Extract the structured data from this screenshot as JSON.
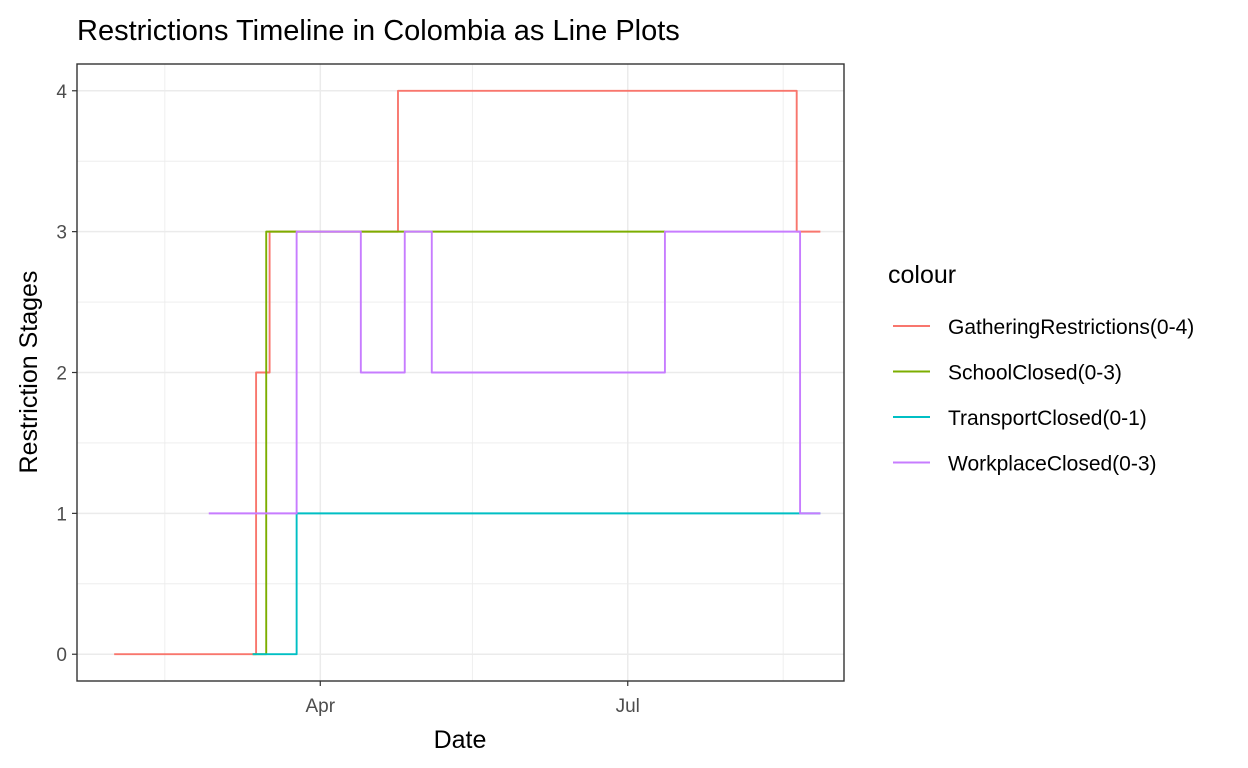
{
  "chart_data": {
    "type": "line",
    "title": "Restrictions Timeline in Colombia as Line Plots",
    "xlabel": "Date",
    "ylabel": "Restriction Stages",
    "xlim": [
      "2020-01-20",
      "2020-09-03"
    ],
    "ylim": [
      -0.19,
      4.19
    ],
    "x_ticks": [
      {
        "date": "2020-04-01",
        "label": "Apr"
      },
      {
        "date": "2020-07-01",
        "label": "Jul"
      }
    ],
    "x_minor_ticks": [
      "2020-02-15",
      "2020-05-16",
      "2020-08-16"
    ],
    "y_ticks": [
      0,
      1,
      2,
      3,
      4
    ],
    "y_minor_ticks": [
      0.5,
      1.5,
      2.5,
      3.5
    ],
    "grid": true,
    "step_style": "step-after",
    "legend": {
      "title": "colour",
      "placement": "right"
    },
    "series": [
      {
        "name": "GatheringRestrictions(0-4)",
        "color": "#F8766D",
        "points": [
          [
            "2020-01-31",
            0
          ],
          [
            "2020-03-13",
            2
          ],
          [
            "2020-03-17",
            3
          ],
          [
            "2020-04-24",
            4
          ],
          [
            "2020-08-20",
            3
          ],
          [
            "2020-08-27",
            3
          ]
        ]
      },
      {
        "name": "SchoolClosed(0-3)",
        "color": "#7CAE00",
        "points": [
          [
            "2020-03-12",
            0
          ],
          [
            "2020-03-16",
            3
          ],
          [
            "2020-07-12",
            3
          ]
        ]
      },
      {
        "name": "TransportClosed(0-1)",
        "color": "#00BFC4",
        "points": [
          [
            "2020-03-12",
            0
          ],
          [
            "2020-03-25",
            1
          ],
          [
            "2020-08-27",
            1
          ]
        ]
      },
      {
        "name": "WorkplaceClosed(0-3)",
        "color": "#C77CFF",
        "points": [
          [
            "2020-02-28",
            1
          ],
          [
            "2020-03-25",
            3
          ],
          [
            "2020-04-13",
            2
          ],
          [
            "2020-04-26",
            3
          ],
          [
            "2020-05-04",
            2
          ],
          [
            "2020-07-12",
            3
          ],
          [
            "2020-08-21",
            1
          ],
          [
            "2020-08-27",
            1
          ]
        ]
      }
    ]
  }
}
